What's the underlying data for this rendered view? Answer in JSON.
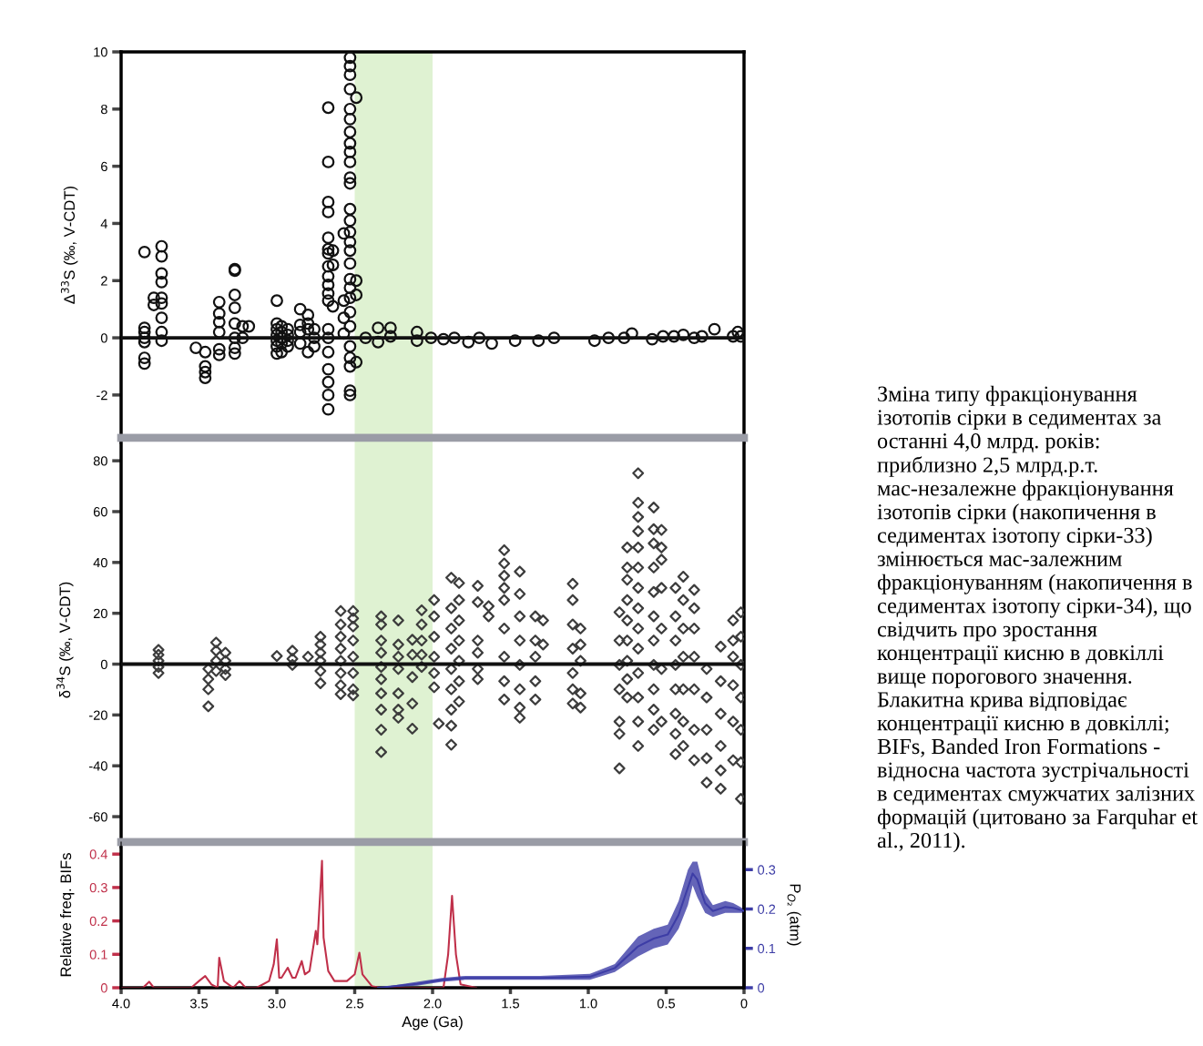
{
  "chart_data": [
    {
      "type": "scatter",
      "ylabel": "Δ$^{33}$S (‰, V-CDT)",
      "xlim": [
        4.0,
        0
      ],
      "xticks": [
        {
          "value": 4,
          "label": null
        },
        {
          "value": 3.5,
          "label": null
        },
        {
          "value": 3,
          "label": null
        },
        {
          "value": 2.5,
          "label": null
        },
        {
          "value": 2,
          "label": null
        },
        {
          "value": 1.5,
          "label": null
        },
        {
          "value": 1,
          "label": null
        },
        {
          "value": 0.5,
          "label": null
        },
        {
          "value": 0,
          "label": null
        }
      ],
      "ylim": [
        -3.5,
        10
      ],
      "yticks": [
        -2,
        0,
        2,
        4,
        6,
        8,
        10
      ],
      "tick_labels": "y",
      "marker": "circle",
      "bands": [
        {
          "axis": "x",
          "from": 2.5,
          "to": 2.0,
          "color": "#dff2d2"
        }
      ],
      "ref_lines": [
        {
          "axis": "y",
          "value": 0,
          "color": "#111111"
        }
      ],
      "series": [
        {
          "color": "#111111",
          "x": [
            3.85,
            3.85,
            3.85,
            3.85,
            3.85,
            3.85,
            3.85,
            3.79,
            3.79,
            3.74,
            3.74,
            3.74,
            3.74,
            3.74,
            3.74,
            3.74,
            3.74,
            3.74,
            3.52,
            3.46,
            3.46,
            3.46,
            3.46,
            3.37,
            3.37,
            3.37,
            3.37,
            3.37,
            3.37,
            3.27,
            3.27,
            3.27,
            3.27,
            3.27,
            3.27,
            3.27,
            3.27,
            3.22,
            3.22,
            3.18,
            3.0,
            3.0,
            3.0,
            3.0,
            3.0,
            3.0,
            3.0,
            2.97,
            2.97,
            2.97,
            2.97,
            2.97,
            2.93,
            2.93,
            2.93,
            2.93,
            2.85,
            2.85,
            2.85,
            2.85,
            2.8,
            2.8,
            2.8,
            2.8,
            2.76,
            2.76,
            2.76,
            2.67,
            2.67,
            2.67,
            2.67,
            2.67,
            2.67,
            2.67,
            2.67,
            2.67,
            2.67,
            2.67,
            2.67,
            2.67,
            2.67,
            2.67,
            2.67,
            2.67,
            2.67,
            2.67,
            2.64,
            2.64,
            2.64,
            2.57,
            2.57,
            2.57,
            2.57,
            2.53,
            2.53,
            2.53,
            2.53,
            2.53,
            2.53,
            2.53,
            2.53,
            2.53,
            2.53,
            2.53,
            2.53,
            2.53,
            2.53,
            2.53,
            2.53,
            2.53,
            2.53,
            2.53,
            2.53,
            2.53,
            2.53,
            2.53,
            2.53,
            2.53,
            2.53,
            2.53,
            2.53,
            2.49,
            2.49,
            2.49,
            2.49,
            2.43,
            2.35,
            2.35,
            2.27,
            2.27,
            2.1,
            2.1,
            2.01,
            1.93,
            1.86,
            1.77,
            1.7,
            1.62,
            1.47,
            1.32,
            1.22,
            0.96,
            0.87,
            0.77,
            0.72,
            0.59,
            0.52,
            0.45,
            0.39,
            0.32,
            0.27,
            0.19,
            0.07,
            0.04,
            0.02
          ],
          "values": [
            3.0,
            0.35,
            0.2,
            0,
            -0.15,
            -0.7,
            -0.9,
            1.4,
            1.15,
            3.2,
            2.85,
            2.25,
            1.95,
            1.4,
            1.2,
            0.7,
            0.2,
            -0.1,
            -0.35,
            -0.5,
            -1.0,
            -1.2,
            -1.4,
            1.25,
            0.85,
            0.55,
            0.2,
            -0.4,
            -0.6,
            2.4,
            2.35,
            1.5,
            1.05,
            0.5,
            0,
            -0.35,
            -0.55,
            0.4,
            0,
            0.4,
            1.3,
            0.5,
            0.3,
            0.1,
            -0.1,
            -0.3,
            -0.55,
            0.4,
            0.2,
            0,
            -0.2,
            -0.5,
            0.3,
            0.1,
            -0.1,
            -0.3,
            1.0,
            0.45,
            0.2,
            -0.2,
            0.8,
            0.5,
            0.3,
            -0.5,
            0.3,
            0,
            -0.3,
            8.05,
            6.15,
            4.75,
            4.4,
            3.5,
            3.1,
            2.95,
            2.5,
            2.15,
            1.85,
            1.55,
            1.3,
            0.3,
            0,
            -0.5,
            -1.1,
            -1.55,
            -2.0,
            -2.5,
            3.05,
            2.55,
            1.1,
            3.65,
            1.3,
            0.7,
            0.15,
            9.8,
            9.5,
            9.2,
            8.7,
            8.0,
            7.65,
            7.2,
            6.8,
            6.5,
            6.15,
            5.6,
            5.4,
            4.5,
            4.1,
            3.7,
            3.35,
            3.05,
            2.6,
            2.05,
            1.75,
            1.4,
            0.9,
            0.4,
            -0.3,
            -0.7,
            -1.0,
            -1.85,
            -2.0,
            8.4,
            2.0,
            1.5,
            -0.85,
            0,
            0.35,
            -0.15,
            0.35,
            0.05,
            0.2,
            -0.1,
            0,
            -0.05,
            0,
            -0.15,
            0,
            -0.2,
            -0.1,
            -0.1,
            0,
            -0.1,
            0,
            0,
            0.15,
            -0.05,
            0.05,
            0.05,
            0.1,
            0,
            0.05,
            0.3,
            0.05,
            0.2,
            0.05
          ]
        }
      ]
    },
    {
      "type": "scatter",
      "ylabel": "δ$^{34}$S (‰, V-CDT)",
      "xlim": [
        4.0,
        0
      ],
      "xticks": [
        {
          "value": 4,
          "label": null
        },
        {
          "value": 3.5,
          "label": null
        },
        {
          "value": 3,
          "label": null
        },
        {
          "value": 2.5,
          "label": null
        },
        {
          "value": 2,
          "label": null
        },
        {
          "value": 1.5,
          "label": null
        },
        {
          "value": 1,
          "label": null
        },
        {
          "value": 0.5,
          "label": null
        },
        {
          "value": 0,
          "label": null
        }
      ],
      "ylim": [
        -70,
        89
      ],
      "yticks": [
        -60,
        -40,
        -20,
        0,
        20,
        40,
        60,
        80
      ],
      "tick_labels": "y",
      "marker": "diamond",
      "bands": [
        {
          "axis": "x",
          "from": 2.5,
          "to": 2.0,
          "color": "#dff2d2"
        }
      ],
      "ref_lines": [
        {
          "axis": "y",
          "value": 0,
          "color": "#111111"
        }
      ],
      "series": [
        {
          "color": "#3c3c3c",
          "x": [
            3.76,
            3.76,
            3.76,
            3.76,
            3.76,
            3.44,
            3.44,
            3.44,
            3.44,
            3.39,
            3.39,
            3.39,
            3.39,
            3.33,
            3.33,
            3.33,
            3.33,
            3.0,
            2.9,
            2.9,
            2.9,
            2.8,
            2.72,
            2.72,
            2.72,
            2.72,
            2.72,
            2.72,
            2.59,
            2.59,
            2.59,
            2.59,
            2.59,
            2.59,
            2.59,
            2.59,
            2.51,
            2.51,
            2.51,
            2.51,
            2.51,
            2.51,
            2.51,
            2.51,
            2.33,
            2.33,
            2.33,
            2.33,
            2.33,
            2.33,
            2.33,
            2.33,
            2.33,
            2.33,
            2.22,
            2.22,
            2.22,
            2.22,
            2.22,
            2.22,
            2.22,
            2.13,
            2.13,
            2.13,
            2.13,
            2.13,
            2.07,
            2.07,
            2.07,
            2.07,
            2.07,
            1.99,
            1.99,
            1.99,
            1.99,
            1.99,
            1.99,
            1.96,
            1.88,
            1.88,
            1.88,
            1.88,
            1.88,
            1.88,
            1.88,
            1.88,
            1.88,
            1.83,
            1.83,
            1.83,
            1.83,
            1.83,
            1.83,
            1.83,
            1.71,
            1.71,
            1.71,
            1.71,
            1.71,
            1.71,
            1.64,
            1.64,
            1.54,
            1.54,
            1.54,
            1.54,
            1.54,
            1.54,
            1.54,
            1.54,
            1.54,
            1.44,
            1.44,
            1.44,
            1.44,
            1.44,
            1.44,
            1.44,
            1.44,
            1.34,
            1.34,
            1.34,
            1.34,
            1.34,
            1.29,
            1.29,
            1.1,
            1.1,
            1.1,
            1.1,
            1.1,
            1.1,
            1.1,
            1.05,
            1.05,
            1.05,
            1.05,
            1.05,
            0.8,
            0.8,
            0.8,
            0.8,
            0.8,
            0.8,
            0.8,
            0.75,
            0.75,
            0.75,
            0.75,
            0.75,
            0.75,
            0.75,
            0.75,
            0.75,
            0.68,
            0.68,
            0.68,
            0.68,
            0.68,
            0.68,
            0.68,
            0.68,
            0.68,
            0.68,
            0.68,
            0.68,
            0.68,
            0.68,
            0.58,
            0.58,
            0.58,
            0.58,
            0.58,
            0.58,
            0.58,
            0.58,
            0.58,
            0.58,
            0.58,
            0.53,
            0.53,
            0.53,
            0.53,
            0.53,
            0.53,
            0.53,
            0.44,
            0.44,
            0.44,
            0.44,
            0.44,
            0.44,
            0.44,
            0.44,
            0.39,
            0.39,
            0.39,
            0.39,
            0.39,
            0.39,
            0.39,
            0.32,
            0.32,
            0.32,
            0.32,
            0.32,
            0.32,
            0.32,
            0.24,
            0.24,
            0.24,
            0.24,
            0.24,
            0.15,
            0.15,
            0.15,
            0.15,
            0.15,
            0.15,
            0.07,
            0.07,
            0.07,
            0.07,
            0.07,
            0.07,
            0.02,
            0.02,
            0.02,
            0.02,
            0.02,
            0.02,
            0.02
          ],
          "values": [
            5.6,
            3.7,
            1.3,
            -1.1,
            -3.5,
            -1.9,
            -5.9,
            -9.9,
            -16.6,
            8.5,
            5.3,
            1.3,
            -2.7,
            4.5,
            1.3,
            -1.9,
            -4.3,
            3.2,
            5.3,
            2.1,
            -0.3,
            2.9,
            10.8,
            7.7,
            4.5,
            1.3,
            -2.7,
            -7.5,
            20.9,
            15.6,
            10.8,
            6.1,
            1.3,
            -3.5,
            -8.3,
            -11.8,
            20.9,
            18.0,
            14.8,
            9.3,
            2.9,
            -3.5,
            -9.9,
            -12.3,
            18.8,
            15.6,
            9.3,
            4.5,
            -1.1,
            -5.9,
            -11.5,
            -17.9,
            -25.8,
            -34.6,
            17.2,
            7.7,
            2.9,
            -1.9,
            -11.5,
            -17.9,
            -21.1,
            9.6,
            3.7,
            -5.1,
            -15.5,
            -25.4,
            21.2,
            15.6,
            9.3,
            3.7,
            -1.1,
            25.2,
            18.8,
            10.8,
            2.9,
            -3.5,
            -9.1,
            -23.4,
            34.0,
            22.0,
            14.0,
            6.1,
            -1.9,
            -9.9,
            -17.9,
            -24.2,
            -31.7,
            31.9,
            25.2,
            17.2,
            9.3,
            1.3,
            -6.7,
            -14.7,
            30.8,
            24.4,
            9.3,
            4.5,
            -1.9,
            -5.9,
            22.8,
            18.8,
            44.8,
            39.6,
            34.8,
            30.0,
            25.2,
            14.0,
            2.9,
            -6.7,
            -13.9,
            36.4,
            27.6,
            18.8,
            9.3,
            -0.3,
            -9.9,
            -17.1,
            -21.1,
            18.8,
            9.3,
            2.9,
            -6.7,
            -13.9,
            17.2,
            7.7,
            31.6,
            25.2,
            15.6,
            6.1,
            -3.5,
            -9.9,
            -15.5,
            14.0,
            7.7,
            1.3,
            -11.5,
            -17.1,
            20.4,
            9.3,
            -0.3,
            -9.9,
            -22.6,
            -27.4,
            -41.0,
            45.9,
            38.0,
            33.2,
            25.2,
            17.2,
            9.3,
            1.3,
            -5.9,
            -13.1,
            75.1,
            63.5,
            57.9,
            52.3,
            45.9,
            38.0,
            30.0,
            22.0,
            14.0,
            6.1,
            -3.5,
            -13.1,
            -22.6,
            -32.2,
            61.6,
            53.1,
            47.5,
            38.0,
            28.4,
            18.8,
            9.3,
            -0.3,
            -9.9,
            -17.9,
            -25.8,
            52.8,
            45.9,
            41.1,
            30.0,
            14.0,
            -1.9,
            -22.6,
            30.0,
            18.8,
            9.3,
            -0.3,
            -9.9,
            -19.5,
            -27.4,
            -35.4,
            34.4,
            25.2,
            14.0,
            2.9,
            -9.9,
            -22.6,
            -32.2,
            29.2,
            22.0,
            14.0,
            2.9,
            -9.9,
            -25.8,
            -37.8,
            -1.9,
            -13.1,
            -25.8,
            -37.0,
            -46.6,
            6.9,
            -6.7,
            -19.5,
            -32.2,
            -41.8,
            -49.0,
            17.2,
            9.3,
            2.9,
            -8.3,
            -22.6,
            -37.8,
            20.4,
            10.8,
            -0.3,
            -13.1,
            -25.8,
            -38.6,
            -53.0
          ]
        }
      ]
    },
    {
      "type": "line",
      "xlabel": "Age (Ga)",
      "ylabel": "Relative freq. BIFs",
      "y2label": "P$_{O₂}$ (atm)",
      "xlim": [
        4.0,
        0
      ],
      "xticks": [
        {
          "value": 4,
          "label": "4.0"
        },
        3.5,
        {
          "value": 3,
          "label": "3.0"
        },
        2.5,
        {
          "value": 2,
          "label": "2.0"
        },
        1.5,
        {
          "value": 1,
          "label": "1.0"
        },
        0.5,
        0
      ],
      "ylim": [
        0,
        0.436
      ],
      "yticks": [
        0,
        0.1,
        0.2,
        0.3,
        0.4
      ],
      "y2lim": [
        0,
        0.37
      ],
      "y2ticks": [
        0,
        0.1,
        0.2,
        0.3
      ],
      "bands": [
        {
          "axis": "x",
          "from": 2.5,
          "to": 2.0,
          "color": "#dff2d2"
        }
      ],
      "series": [
        {
          "color": "#c0304a",
          "x": [
            4.0,
            3.86,
            3.82,
            3.79,
            3.55,
            3.5,
            3.46,
            3.42,
            3.38,
            3.37,
            3.34,
            3.28,
            3.24,
            3.2,
            3.13,
            3.05,
            3.02,
            3.0,
            2.985,
            2.97,
            2.93,
            2.9,
            2.88,
            2.84,
            2.82,
            2.79,
            2.75,
            2.74,
            2.71,
            2.7,
            2.67,
            2.63,
            2.55,
            2.5,
            2.47,
            2.45,
            2.39,
            2.34,
            1.93,
            1.9,
            1.875,
            1.85,
            1.82,
            1.72
          ],
          "values": [
            0,
            0,
            0.018,
            0,
            0,
            0.02,
            0.035,
            0.01,
            0,
            0.09,
            0.02,
            0,
            0.02,
            0,
            0,
            0.02,
            0.07,
            0.145,
            0.03,
            0.03,
            0.06,
            0.03,
            0.03,
            0.08,
            0.04,
            0.05,
            0.17,
            0.13,
            0.38,
            0.15,
            0.05,
            0.02,
            0.02,
            0.04,
            0.105,
            0.04,
            0.005,
            0,
            0,
            0.1,
            0.275,
            0.1,
            0.01,
            0
          ]
        },
        {
          "color": "#3d3da6",
          "axis": "y2",
          "x": [
            2.35,
            2.1,
            1.94,
            1.79,
            1.31,
            0.99,
            0.83,
            0.68,
            0.58,
            0.49,
            0.42,
            0.36,
            0.33,
            0.3,
            0.25,
            0.2,
            0.12,
            0.07,
            0
          ],
          "values": [
            0,
            0.01,
            0.02,
            0.025,
            0.025,
            0.028,
            0.05,
            0.105,
            0.125,
            0.135,
            0.185,
            0.255,
            0.29,
            0.275,
            0.215,
            0.195,
            0.205,
            0.203,
            0.195
          ],
          "lower": [
            0,
            0.005,
            0.015,
            0.02,
            0.02,
            0.02,
            0.04,
            0.08,
            0.1,
            0.11,
            0.15,
            0.21,
            0.26,
            0.23,
            0.19,
            0.18,
            0.19,
            0.19,
            0.19
          ],
          "upper": [
            0,
            0.015,
            0.025,
            0.03,
            0.03,
            0.035,
            0.06,
            0.13,
            0.15,
            0.16,
            0.22,
            0.3,
            0.32,
            0.32,
            0.24,
            0.21,
            0.22,
            0.215,
            0.2
          ]
        }
      ]
    },
    {
      "type": "other",
      "annotations": [
        "Зміна типу фракціонування ізотопів сірки в седиментах за останні 4,0 млрд. років: приблизно 2,5 млрд.р.т. мас-незалежне фракціонування ізотопів сірки (накопичення в седиментах ізотопу сірки-33) змінюється мас-залежним фракціонуванням (накопичення в седиментах ізотопу сірки-34), що свідчить про зростання концентрації кисню в довкіллі вище порогового значення. Блакитна крива відповідає концентрації кисню в довкіллі; BIFs, Banded Iron Formations - відносна частота зустрічальності в седиментах смужчатих залізних формацій (цитовано за Farquhar et al., 2011)."
      ]
    }
  ]
}
